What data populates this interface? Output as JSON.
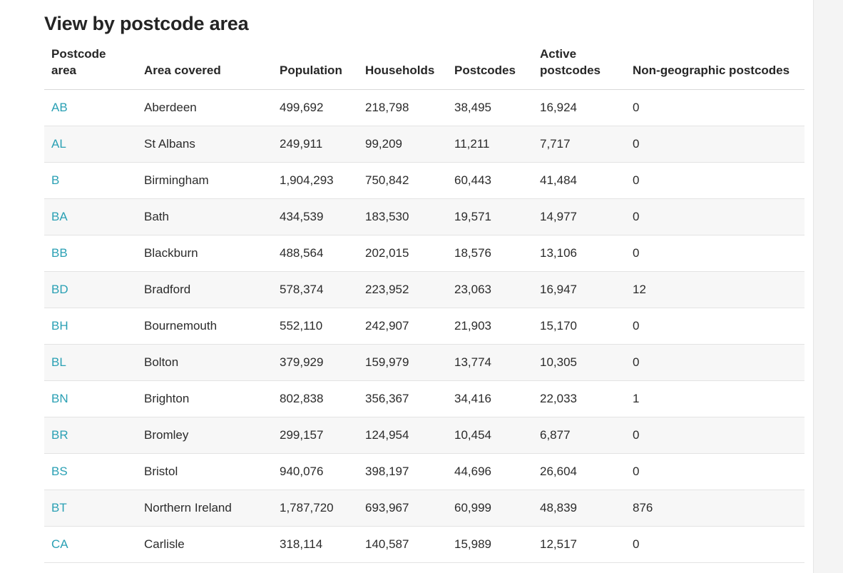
{
  "title": "View by postcode area",
  "link_color": "#2aa0b4",
  "text_color": "#262626",
  "row_stripe_color": "#f7f7f7",
  "border_color": "#e3e3e3",
  "header_border_color": "#d9d9d9",
  "font_size_body": 17,
  "font_size_title": 27,
  "columns": [
    "Postcode area",
    "Area covered",
    "Population",
    "Households",
    "Postcodes",
    "Active postcodes",
    "Non-geographic postcodes"
  ],
  "rows": [
    {
      "code": "AB",
      "area": "Aberdeen",
      "population": "499,692",
      "households": "218,798",
      "postcodes": "38,495",
      "active": "16,924",
      "nongeo": "0"
    },
    {
      "code": "AL",
      "area": "St Albans",
      "population": "249,911",
      "households": "99,209",
      "postcodes": "11,211",
      "active": "7,717",
      "nongeo": "0"
    },
    {
      "code": "B",
      "area": "Birmingham",
      "population": "1,904,293",
      "households": "750,842",
      "postcodes": "60,443",
      "active": "41,484",
      "nongeo": "0"
    },
    {
      "code": "BA",
      "area": "Bath",
      "population": "434,539",
      "households": "183,530",
      "postcodes": "19,571",
      "active": "14,977",
      "nongeo": "0"
    },
    {
      "code": "BB",
      "area": "Blackburn",
      "population": "488,564",
      "households": "202,015",
      "postcodes": "18,576",
      "active": "13,106",
      "nongeo": "0"
    },
    {
      "code": "BD",
      "area": "Bradford",
      "population": "578,374",
      "households": "223,952",
      "postcodes": "23,063",
      "active": "16,947",
      "nongeo": "12"
    },
    {
      "code": "BH",
      "area": "Bournemouth",
      "population": "552,110",
      "households": "242,907",
      "postcodes": "21,903",
      "active": "15,170",
      "nongeo": "0"
    },
    {
      "code": "BL",
      "area": "Bolton",
      "population": "379,929",
      "households": "159,979",
      "postcodes": "13,774",
      "active": "10,305",
      "nongeo": "0"
    },
    {
      "code": "BN",
      "area": "Brighton",
      "population": "802,838",
      "households": "356,367",
      "postcodes": "34,416",
      "active": "22,033",
      "nongeo": "1"
    },
    {
      "code": "BR",
      "area": "Bromley",
      "population": "299,157",
      "households": "124,954",
      "postcodes": "10,454",
      "active": "6,877",
      "nongeo": "0"
    },
    {
      "code": "BS",
      "area": "Bristol",
      "population": "940,076",
      "households": "398,197",
      "postcodes": "44,696",
      "active": "26,604",
      "nongeo": "0"
    },
    {
      "code": "BT",
      "area": "Northern Ireland",
      "population": "1,787,720",
      "households": "693,967",
      "postcodes": "60,999",
      "active": "48,839",
      "nongeo": "876"
    },
    {
      "code": "CA",
      "area": "Carlisle",
      "population": "318,114",
      "households": "140,587",
      "postcodes": "15,989",
      "active": "12,517",
      "nongeo": "0"
    }
  ]
}
